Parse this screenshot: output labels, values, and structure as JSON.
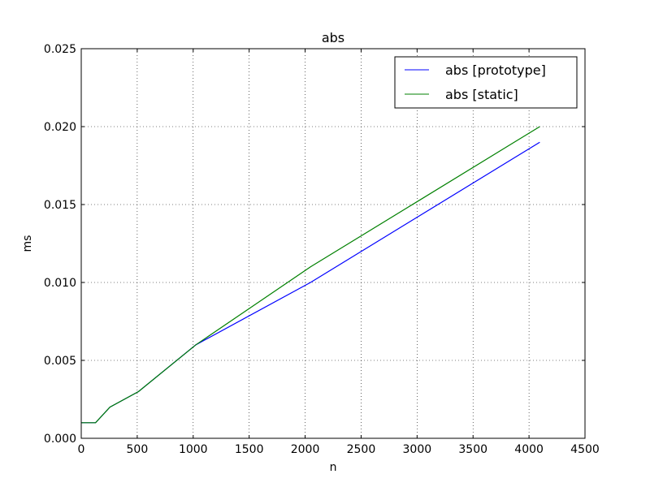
{
  "chart_data": {
    "type": "line",
    "title": "abs",
    "xlabel": "n",
    "ylabel": "ms",
    "xlim": [
      0,
      4500
    ],
    "ylim": [
      0,
      0.025
    ],
    "xticks": [
      0,
      500,
      1000,
      1500,
      2000,
      2500,
      3000,
      3500,
      4000,
      4500
    ],
    "yticks": [
      0.0,
      0.005,
      0.01,
      0.015,
      0.02,
      0.025
    ],
    "xtick_labels": [
      "0",
      "500",
      "1000",
      "1500",
      "2000",
      "2500",
      "3000",
      "3500",
      "4000",
      "4500"
    ],
    "ytick_labels": [
      "0.000",
      "0.005",
      "0.010",
      "0.015",
      "0.020",
      "0.025"
    ],
    "grid": true,
    "legend_position": "top-right",
    "series": [
      {
        "name": "abs [prototype]",
        "color": "#0000ff",
        "x": [
          0,
          128,
          256,
          512,
          1024,
          2048,
          4096
        ],
        "y": [
          0.001,
          0.001,
          0.002,
          0.003,
          0.006,
          0.01,
          0.019
        ]
      },
      {
        "name": "abs [static]",
        "color": "#008000",
        "x": [
          0,
          128,
          256,
          512,
          1024,
          2048,
          4096
        ],
        "y": [
          0.001,
          0.001,
          0.002,
          0.003,
          0.006,
          0.011,
          0.02
        ]
      }
    ]
  }
}
